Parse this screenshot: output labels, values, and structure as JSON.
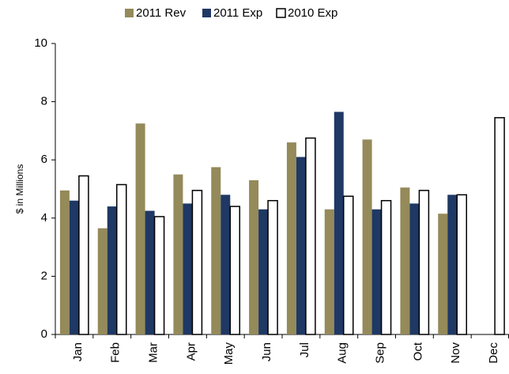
{
  "chart_data": {
    "type": "bar",
    "ylabel": "$ in Millions",
    "categories": [
      "Jan",
      "Feb",
      "Mar",
      "Apr",
      "May",
      "Jun",
      "Jul",
      "Aug",
      "Sep",
      "Oct",
      "Nov",
      "Dec"
    ],
    "series": [
      {
        "name": "2011 Rev",
        "color": "#948a5a",
        "values": [
          4.95,
          3.65,
          7.25,
          5.5,
          5.75,
          5.3,
          6.6,
          4.3,
          6.7,
          5.05,
          4.15,
          null
        ]
      },
      {
        "name": "2011 Exp",
        "color": "#1f3864",
        "values": [
          4.6,
          4.4,
          4.25,
          4.5,
          4.8,
          4.3,
          6.1,
          7.65,
          4.3,
          4.5,
          4.8,
          null
        ]
      },
      {
        "name": "2010 Exp",
        "color": "#ffffff",
        "values": [
          5.45,
          5.15,
          4.05,
          4.95,
          4.4,
          4.6,
          6.75,
          4.75,
          4.6,
          4.95,
          4.8,
          7.45
        ]
      }
    ],
    "ylim": [
      0,
      10
    ],
    "yticks": [
      0,
      2,
      4,
      6,
      8,
      10
    ],
    "grid": false,
    "legend": "top"
  }
}
